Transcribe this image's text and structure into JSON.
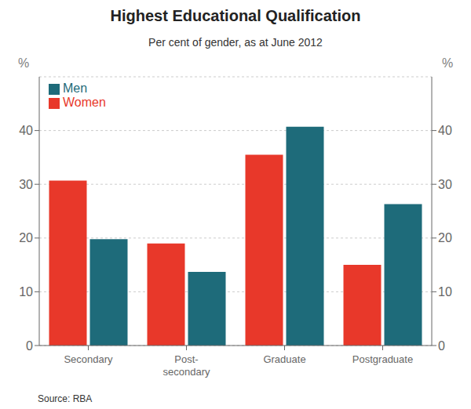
{
  "chart_data": {
    "type": "bar",
    "title": "Highest Educational Qualification",
    "subtitle": "Per cent of gender, as at June 2012",
    "source": "Source: RBA",
    "categories": [
      "Secondary",
      "Post-\nsecondary",
      "Graduate",
      "Postgraduate"
    ],
    "series": [
      {
        "name": "Women",
        "color": "#e8382a",
        "values": [
          30.7,
          19.0,
          35.5,
          15.0
        ]
      },
      {
        "name": "Men",
        "color": "#1e6b7a",
        "values": [
          19.8,
          13.7,
          40.7,
          26.3
        ]
      }
    ],
    "ylabel": "%",
    "y2label": "%",
    "ylim": [
      0,
      50
    ],
    "yticks": [
      0,
      10,
      20,
      30,
      40
    ],
    "y2lim": [
      0,
      50
    ],
    "y2ticks": [
      0,
      10,
      20,
      30,
      40
    ],
    "grid": true,
    "legend": "upper left"
  }
}
